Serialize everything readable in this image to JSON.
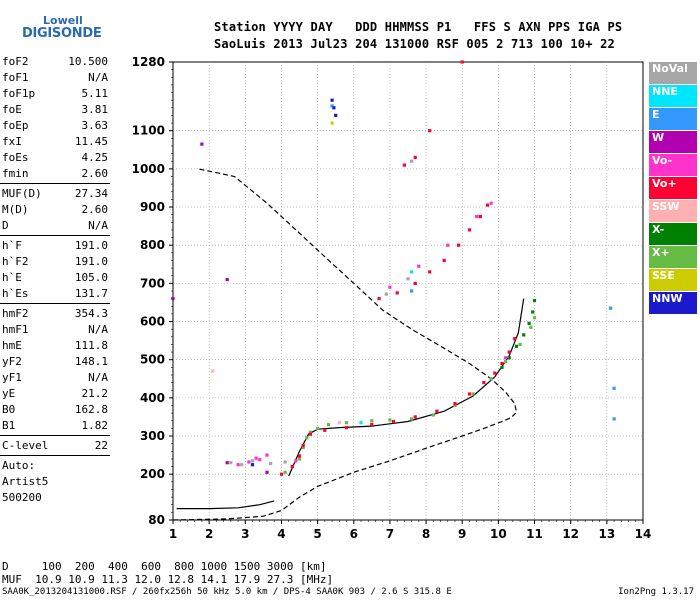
{
  "logo": {
    "top": "Lowell",
    "bottom": "DIGISONDE"
  },
  "header": {
    "line1": "Station YYYY DAY   DDD HHMMSS P1   FFS S AXN PPS IGA PS",
    "line2": "SaoLuis 2013 Jul23 204 131000 RSF 005 2 713 100 10+ 22"
  },
  "params": {
    "g1": [
      {
        "k": "foF2",
        "v": "10.500"
      },
      {
        "k": "foF1",
        "v": "N/A"
      },
      {
        "k": "foF1p",
        "v": "5.11"
      },
      {
        "k": "foE",
        "v": "3.81"
      },
      {
        "k": "foEp",
        "v": "3.63"
      },
      {
        "k": "fxI",
        "v": "11.45"
      },
      {
        "k": "foEs",
        "v": "4.25"
      },
      {
        "k": "fmin",
        "v": "2.60"
      }
    ],
    "g2": [
      {
        "k": "MUF(D)",
        "v": "27.34"
      },
      {
        "k": "M(D)",
        "v": "2.60"
      },
      {
        "k": "D",
        "v": "N/A"
      }
    ],
    "g3": [
      {
        "k": "h`F",
        "v": "191.0"
      },
      {
        "k": "h`F2",
        "v": "191.0"
      },
      {
        "k": "h`E",
        "v": "105.0"
      },
      {
        "k": "h`Es",
        "v": "131.7"
      }
    ],
    "g4": [
      {
        "k": "hmF2",
        "v": "354.3"
      },
      {
        "k": "hmF1",
        "v": "N/A"
      },
      {
        "k": "hmE",
        "v": "111.8"
      },
      {
        "k": "yF2",
        "v": "148.1"
      },
      {
        "k": "yF1",
        "v": "N/A"
      },
      {
        "k": "yE",
        "v": "21.2"
      },
      {
        "k": "B0",
        "v": "162.8"
      },
      {
        "k": "B1",
        "v": "1.82"
      }
    ],
    "g5": [
      {
        "k": "C-level",
        "v": "22"
      }
    ],
    "auto": [
      "Auto:",
      "Artist5",
      "500200"
    ]
  },
  "legend": [
    {
      "label": "NoVal",
      "color": "#a6a6a6"
    },
    {
      "label": "NNE",
      "color": "#00e6ff"
    },
    {
      "label": "E",
      "color": "#3399ff"
    },
    {
      "label": "W",
      "color": "#b000b0"
    },
    {
      "label": "Vo-",
      "color": "#ff33cc"
    },
    {
      "label": "Vo+",
      "color": "#ff0033"
    },
    {
      "label": "SSW",
      "color": "#ffb0b0"
    },
    {
      "label": "X-",
      "color": "#008000"
    },
    {
      "label": "X+",
      "color": "#66bb44"
    },
    {
      "label": "SSE",
      "color": "#cccc00"
    },
    {
      "label": "NNW",
      "color": "#1a1acc"
    }
  ],
  "muf_table": {
    "line1": "D     100  200  400  600  800 1000 1500 3000 [km]",
    "line2": "MUF  10.9 10.9 11.3 12.0 12.8 14.1 17.9 27.3 [MHz]"
  },
  "footer": {
    "left": "SAA0K_2013204131000.RSF / 260fx256h 50 kHz 5.0 km / DPS-4 SAA0K 903 / 2.6 S 315.8 E",
    "right": "Ion2Png 1.3.17"
  },
  "chart_data": {
    "type": "scatter",
    "title": "",
    "xlabel": "",
    "ylabel": "",
    "xlim": [
      1,
      14
    ],
    "ylim": [
      80,
      1280
    ],
    "x_ticks": [
      1,
      2,
      3,
      4,
      5,
      6,
      7,
      8,
      9,
      10,
      11,
      12,
      13,
      14
    ],
    "y_ticks": [
      80,
      200,
      300,
      400,
      500,
      600,
      700,
      800,
      900,
      1000,
      1100,
      1280
    ],
    "grid": true,
    "series": [
      {
        "name": "X+",
        "color": "#66bb44",
        "points": [
          [
            4.1,
            205
          ],
          [
            4.3,
            220
          ],
          [
            4.5,
            240
          ],
          [
            4.6,
            270
          ],
          [
            4.7,
            295
          ],
          [
            4.8,
            310
          ],
          [
            5.0,
            320
          ],
          [
            5.3,
            330
          ],
          [
            5.8,
            335
          ],
          [
            6.5,
            340
          ],
          [
            7.0,
            342
          ],
          [
            7.6,
            345
          ],
          [
            8.2,
            355
          ],
          [
            8.8,
            380
          ],
          [
            9.3,
            410
          ],
          [
            9.8,
            450
          ],
          [
            10.2,
            495
          ],
          [
            10.6,
            540
          ],
          [
            10.9,
            585
          ],
          [
            11.0,
            610
          ]
        ]
      },
      {
        "name": "X-",
        "color": "#008000",
        "points": [
          [
            10.1,
            480
          ],
          [
            10.3,
            505
          ],
          [
            10.5,
            535
          ],
          [
            10.7,
            565
          ],
          [
            10.85,
            595
          ],
          [
            10.95,
            625
          ],
          [
            11.0,
            655
          ]
        ]
      },
      {
        "name": "Vo+",
        "color": "#ff0033",
        "points": [
          [
            4.0,
            200
          ],
          [
            4.3,
            220
          ],
          [
            4.5,
            248
          ],
          [
            4.6,
            275
          ],
          [
            4.8,
            305
          ],
          [
            5.2,
            315
          ],
          [
            5.8,
            322
          ],
          [
            6.5,
            330
          ],
          [
            7.1,
            338
          ],
          [
            7.7,
            350
          ],
          [
            8.3,
            365
          ],
          [
            8.8,
            385
          ],
          [
            9.2,
            410
          ],
          [
            9.6,
            440
          ],
          [
            9.9,
            465
          ],
          [
            10.1,
            490
          ],
          [
            10.3,
            520
          ],
          [
            10.45,
            555
          ],
          [
            6.7,
            660
          ],
          [
            7.2,
            675
          ],
          [
            7.7,
            700
          ],
          [
            8.1,
            730
          ],
          [
            8.5,
            760
          ],
          [
            8.9,
            800
          ],
          [
            9.2,
            840
          ],
          [
            9.5,
            875
          ],
          [
            9.7,
            905
          ],
          [
            7.4,
            1010
          ],
          [
            7.7,
            1030
          ],
          [
            8.1,
            1100
          ],
          [
            9.0,
            1280
          ]
        ]
      },
      {
        "name": "Vo-",
        "color": "#ff33cc",
        "points": [
          [
            2.8,
            225
          ],
          [
            3.1,
            232
          ],
          [
            3.4,
            238
          ],
          [
            3.6,
            250
          ],
          [
            3.3,
            242
          ],
          [
            4.4,
            235
          ],
          [
            7.0,
            690
          ],
          [
            7.8,
            745
          ],
          [
            8.6,
            800
          ],
          [
            9.4,
            875
          ],
          [
            9.8,
            910
          ],
          [
            10.2,
            505
          ]
        ]
      },
      {
        "name": "NoVal",
        "color": "#a6a6a6",
        "points": [
          [
            2.6,
            230
          ],
          [
            2.9,
            225
          ],
          [
            3.2,
            235
          ],
          [
            3.7,
            228
          ],
          [
            4.1,
            232
          ],
          [
            6.9,
            672
          ],
          [
            7.5,
            712
          ],
          [
            7.6,
            1020
          ]
        ]
      },
      {
        "name": "W",
        "color": "#b000b0",
        "points": [
          [
            1.0,
            660
          ],
          [
            1.8,
            1065
          ],
          [
            2.5,
            710
          ],
          [
            3.6,
            205
          ],
          [
            2.5,
            230
          ]
        ]
      },
      {
        "name": "E",
        "color": "#3399ff",
        "points": [
          [
            7.6,
            680
          ],
          [
            13.1,
            635
          ],
          [
            13.2,
            425
          ],
          [
            13.2,
            345
          ],
          [
            5.4,
            1165
          ]
        ]
      },
      {
        "name": "NNE",
        "color": "#00e6ff",
        "points": [
          [
            7.6,
            730
          ],
          [
            6.2,
            335
          ]
        ]
      },
      {
        "name": "SSE",
        "color": "#cccc00",
        "points": [
          [
            5.4,
            1120
          ]
        ]
      },
      {
        "name": "NNW",
        "color": "#1a1acc",
        "points": [
          [
            5.4,
            1180
          ],
          [
            5.45,
            1160
          ],
          [
            5.5,
            1140
          ],
          [
            3.2,
            225
          ]
        ]
      },
      {
        "name": "SSW",
        "color": "#ffb0b0",
        "points": [
          [
            2.1,
            470
          ],
          [
            5.6,
            335
          ]
        ]
      }
    ],
    "profile_line": [
      [
        1.0,
        80
      ],
      [
        2.5,
        83
      ],
      [
        3.5,
        90
      ],
      [
        4.0,
        105
      ],
      [
        4.5,
        140
      ],
      [
        5.0,
        168
      ],
      [
        6.0,
        205
      ],
      [
        7.0,
        235
      ],
      [
        8.0,
        268
      ],
      [
        9.0,
        300
      ],
      [
        9.6,
        320
      ],
      [
        10.1,
        338
      ],
      [
        10.35,
        348
      ],
      [
        10.5,
        362
      ],
      [
        10.45,
        385
      ],
      [
        10.2,
        415
      ],
      [
        9.8,
        450
      ],
      [
        9.2,
        490
      ],
      [
        8.5,
        530
      ],
      [
        7.6,
        580
      ],
      [
        6.8,
        630
      ],
      [
        6.0,
        700
      ],
      [
        5.2,
        770
      ],
      [
        4.4,
        840
      ],
      [
        3.6,
        910
      ],
      [
        2.7,
        980
      ],
      [
        1.7,
        1000
      ]
    ],
    "trace_line": [
      [
        4.2,
        195
      ],
      [
        4.5,
        260
      ],
      [
        4.75,
        305
      ],
      [
        5.0,
        318
      ],
      [
        5.6,
        322
      ],
      [
        6.5,
        326
      ],
      [
        7.5,
        338
      ],
      [
        8.5,
        365
      ],
      [
        9.3,
        405
      ],
      [
        9.9,
        455
      ],
      [
        10.3,
        510
      ],
      [
        10.55,
        570
      ],
      [
        10.7,
        660
      ]
    ],
    "low_trace": [
      [
        1.1,
        110
      ],
      [
        2.0,
        110
      ],
      [
        2.8,
        112
      ],
      [
        3.4,
        120
      ],
      [
        3.8,
        130
      ]
    ]
  }
}
